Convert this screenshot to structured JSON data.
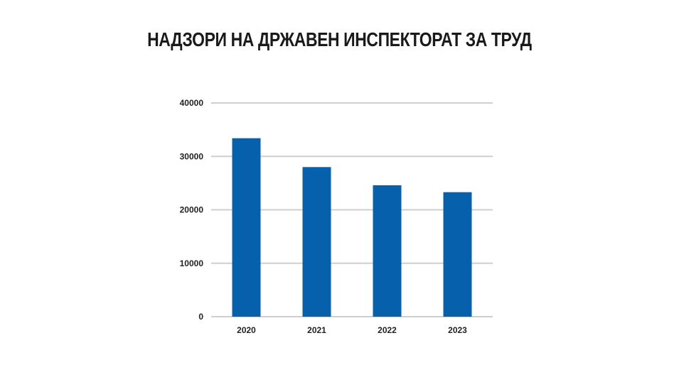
{
  "chart_data": {
    "type": "bar",
    "title": "НАДЗОРИ НА ДРЖАВЕН ИНСПЕКТОРАТ ЗА ТРУД",
    "categories": [
      "2020",
      "2021",
      "2022",
      "2023"
    ],
    "values": [
      33400,
      28000,
      24600,
      23300
    ],
    "ylim": [
      0,
      40000
    ],
    "yticks": [
      0,
      10000,
      20000,
      30000,
      40000
    ],
    "xlabel": "",
    "ylabel": "",
    "grid": true,
    "legend": "none",
    "colors": {
      "bar": "#0760ab",
      "grid": "#cfcfcf",
      "text": "#222222"
    }
  }
}
